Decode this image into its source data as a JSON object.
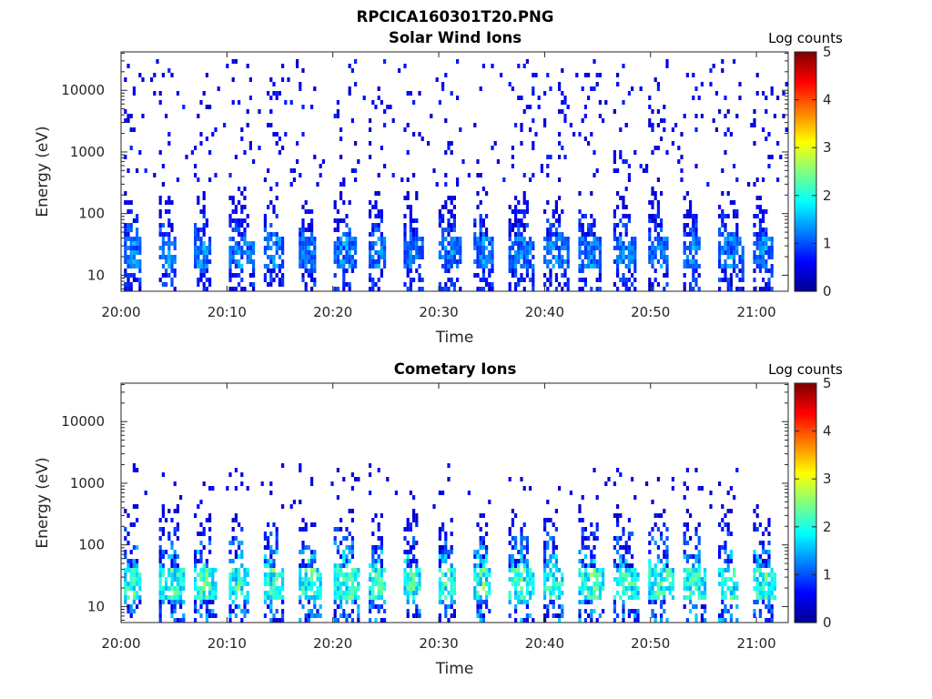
{
  "figure_title": "RPCICA160301T20.PNG",
  "colormap": [
    "#00008f",
    "#0000ff",
    "#0080ff",
    "#00ffff",
    "#80ff80",
    "#ffff00",
    "#ff8000",
    "#ff0000",
    "#800000"
  ],
  "chart_data": [
    {
      "type": "heatmap",
      "title": "Solar Wind Ions",
      "xlabel": "Time",
      "ylabel": "Energy (eV)",
      "x_tick_labels": [
        "20:00",
        "20:10",
        "20:20",
        "20:30",
        "20:40",
        "20:50",
        "21:00"
      ],
      "xlim": [
        "20:00",
        "21:03"
      ],
      "y_scale": "log",
      "y_tick_labels": [
        "10",
        "100",
        "1000",
        "10000"
      ],
      "ylim": [
        5.5,
        42000
      ],
      "colorbar": {
        "label": "Log counts",
        "range": [
          0,
          5
        ],
        "tick_labels": [
          "0",
          "1",
          "2",
          "3",
          "4",
          "5"
        ]
      },
      "scan_period_min": 3.3,
      "scan_start_min": 0.4,
      "scan_count": 19,
      "core_energy_eV": [
        12,
        45
      ],
      "core_intensity": [
        0.8,
        1.7
      ],
      "tail_max_energy_eV": 250,
      "sparse_energy_range_eV": [
        250,
        30000
      ],
      "sparse_intensity": [
        0.3,
        0.8
      ]
    },
    {
      "type": "heatmap",
      "title": "Cometary Ions",
      "xlabel": "Time",
      "ylabel": "Energy (eV)",
      "x_tick_labels": [
        "20:00",
        "20:10",
        "20:20",
        "20:30",
        "20:40",
        "20:50",
        "21:00"
      ],
      "xlim": [
        "20:00",
        "21:03"
      ],
      "y_scale": "log",
      "y_tick_labels": [
        "10",
        "100",
        "1000",
        "10000"
      ],
      "ylim": [
        5.5,
        42000
      ],
      "colorbar": {
        "label": "Log counts",
        "range": [
          0,
          5
        ],
        "tick_labels": [
          "0",
          "1",
          "2",
          "3",
          "4",
          "5"
        ]
      },
      "scan_period_min": 3.3,
      "scan_start_min": 0.4,
      "scan_count": 19,
      "core_energy_eV": [
        12,
        45
      ],
      "core_intensity": [
        1.4,
        2.8
      ],
      "tail_max_energy_eV": 400,
      "sparse_energy_range_eV": [
        400,
        2000
      ],
      "sparse_intensity": [
        0.3,
        0.7
      ]
    }
  ]
}
